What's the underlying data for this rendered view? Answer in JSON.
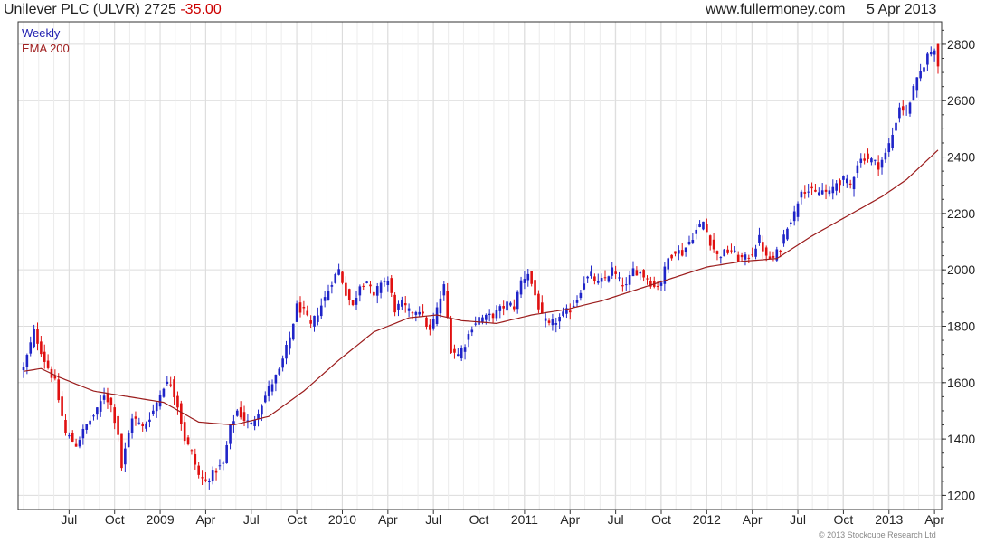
{
  "header": {
    "symbol": "Unilever PLC (ULVR) 2725",
    "change": "-35.00",
    "website": "www.fullermoney.com",
    "date": "5 Apr 2013"
  },
  "legend": {
    "weekly": "Weekly",
    "ema": "EMA 200"
  },
  "copyright": "© 2013 Stockcube Research Ltd",
  "colors": {
    "up": "#1f24c8",
    "down": "#e01010",
    "ema": "#9b1c1c",
    "grid": "#dcdcdc",
    "axis": "#333333"
  },
  "chart_data": {
    "type": "candlestick",
    "period": "Weekly",
    "ylim": [
      1150,
      2880
    ],
    "yticks": [
      1200,
      1400,
      1600,
      1800,
      2000,
      2200,
      2400,
      2600,
      2800
    ],
    "xticks": [
      "Jul",
      "Oct",
      "2009",
      "Apr",
      "Jul",
      "Oct",
      "2010",
      "Apr",
      "Jul",
      "Oct",
      "2011",
      "Apr",
      "Jul",
      "Oct",
      "2012",
      "Apr",
      "Jul",
      "Oct",
      "2013",
      "Apr"
    ],
    "xtick_weeks": [
      13,
      26,
      39,
      52,
      65,
      78,
      91,
      104,
      117,
      130,
      143,
      156,
      169,
      182,
      195,
      208,
      221,
      234,
      247,
      260
    ],
    "week_count": 262,
    "anchors": [
      [
        0,
        1650
      ],
      [
        3,
        1780
      ],
      [
        6,
        1680
      ],
      [
        9,
        1600
      ],
      [
        12,
        1420
      ],
      [
        15,
        1380
      ],
      [
        18,
        1450
      ],
      [
        21,
        1500
      ],
      [
        23,
        1560
      ],
      [
        25,
        1520
      ],
      [
        27,
        1420
      ],
      [
        28,
        1300
      ],
      [
        31,
        1480
      ],
      [
        34,
        1440
      ],
      [
        37,
        1500
      ],
      [
        40,
        1590
      ],
      [
        42,
        1600
      ],
      [
        44,
        1520
      ],
      [
        46,
        1400
      ],
      [
        48,
        1350
      ],
      [
        50,
        1270
      ],
      [
        52,
        1250
      ],
      [
        55,
        1290
      ],
      [
        57,
        1310
      ],
      [
        59,
        1440
      ],
      [
        61,
        1500
      ],
      [
        63,
        1470
      ],
      [
        65,
        1450
      ],
      [
        67,
        1500
      ],
      [
        70,
        1580
      ],
      [
        73,
        1640
      ],
      [
        76,
        1760
      ],
      [
        78,
        1870
      ],
      [
        80,
        1850
      ],
      [
        82,
        1800
      ],
      [
        84,
        1850
      ],
      [
        86,
        1900
      ],
      [
        88,
        1960
      ],
      [
        90,
        2000
      ],
      [
        92,
        1920
      ],
      [
        94,
        1870
      ],
      [
        96,
        1950
      ],
      [
        98,
        1960
      ],
      [
        100,
        1900
      ],
      [
        102,
        1960
      ],
      [
        104,
        1960
      ],
      [
        106,
        1860
      ],
      [
        108,
        1880
      ],
      [
        110,
        1850
      ],
      [
        113,
        1860
      ],
      [
        116,
        1780
      ],
      [
        118,
        1860
      ],
      [
        120,
        1940
      ],
      [
        122,
        1720
      ],
      [
        124,
        1700
      ],
      [
        126,
        1740
      ],
      [
        128,
        1800
      ],
      [
        130,
        1830
      ],
      [
        132,
        1830
      ],
      [
        134,
        1840
      ],
      [
        136,
        1860
      ],
      [
        138,
        1880
      ],
      [
        140,
        1870
      ],
      [
        142,
        1960
      ],
      [
        144,
        1990
      ],
      [
        146,
        1910
      ],
      [
        148,
        1830
      ],
      [
        150,
        1800
      ],
      [
        152,
        1820
      ],
      [
        154,
        1840
      ],
      [
        156,
        1860
      ],
      [
        158,
        1900
      ],
      [
        160,
        1960
      ],
      [
        162,
        1980
      ],
      [
        164,
        1950
      ],
      [
        166,
        1970
      ],
      [
        168,
        2000
      ],
      [
        170,
        1960
      ],
      [
        172,
        1940
      ],
      [
        174,
        2000
      ],
      [
        176,
        1990
      ],
      [
        178,
        1970
      ],
      [
        180,
        1940
      ],
      [
        182,
        1960
      ],
      [
        184,
        2040
      ],
      [
        186,
        2070
      ],
      [
        188,
        2060
      ],
      [
        190,
        2100
      ],
      [
        192,
        2140
      ],
      [
        194,
        2170
      ],
      [
        196,
        2100
      ],
      [
        198,
        2050
      ],
      [
        200,
        2060
      ],
      [
        202,
        2070
      ],
      [
        204,
        2040
      ],
      [
        206,
        2040
      ],
      [
        208,
        2060
      ],
      [
        210,
        2110
      ],
      [
        212,
        2040
      ],
      [
        214,
        2040
      ],
      [
        216,
        2080
      ],
      [
        218,
        2160
      ],
      [
        220,
        2200
      ],
      [
        222,
        2290
      ],
      [
        224,
        2280
      ],
      [
        226,
        2270
      ],
      [
        228,
        2280
      ],
      [
        230,
        2270
      ],
      [
        232,
        2310
      ],
      [
        234,
        2320
      ],
      [
        236,
        2300
      ],
      [
        238,
        2380
      ],
      [
        240,
        2400
      ],
      [
        242,
        2390
      ],
      [
        244,
        2370
      ],
      [
        246,
        2410
      ],
      [
        248,
        2480
      ],
      [
        250,
        2580
      ],
      [
        252,
        2560
      ],
      [
        254,
        2640
      ],
      [
        256,
        2700
      ],
      [
        258,
        2760
      ],
      [
        260,
        2790
      ],
      [
        261,
        2725
      ]
    ],
    "ema_anchors": [
      [
        0,
        1640
      ],
      [
        5,
        1650
      ],
      [
        10,
        1620
      ],
      [
        20,
        1570
      ],
      [
        30,
        1550
      ],
      [
        40,
        1530
      ],
      [
        50,
        1460
      ],
      [
        60,
        1450
      ],
      [
        70,
        1480
      ],
      [
        80,
        1570
      ],
      [
        90,
        1680
      ],
      [
        100,
        1780
      ],
      [
        110,
        1830
      ],
      [
        118,
        1840
      ],
      [
        125,
        1820
      ],
      [
        135,
        1810
      ],
      [
        145,
        1840
      ],
      [
        155,
        1860
      ],
      [
        165,
        1890
      ],
      [
        175,
        1930
      ],
      [
        185,
        1970
      ],
      [
        195,
        2010
      ],
      [
        205,
        2030
      ],
      [
        215,
        2040
      ],
      [
        225,
        2120
      ],
      [
        235,
        2190
      ],
      [
        245,
        2260
      ],
      [
        252,
        2320
      ],
      [
        258,
        2390
      ],
      [
        261,
        2425
      ]
    ]
  }
}
